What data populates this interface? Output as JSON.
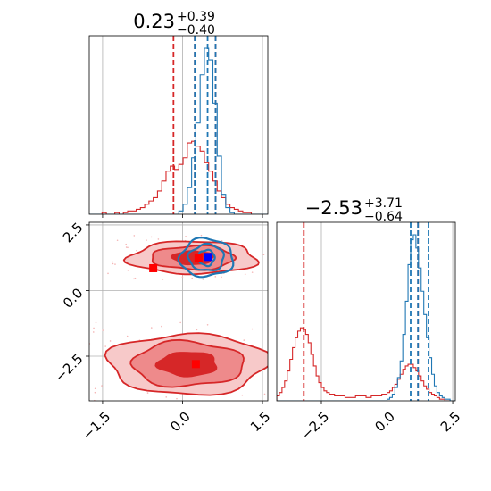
{
  "chart_data": [
    {
      "type": "histogram",
      "panel": "top-left",
      "title": {
        "main": "0.23",
        "sup": "+0.39",
        "sub": "−0.40"
      },
      "xlim": [
        -1.75,
        1.6
      ],
      "x_ticks": [
        -1.5,
        0.0,
        1.5
      ],
      "grid": true,
      "red_lines": [
        -0.17,
        0.23,
        0.62
      ],
      "blue_lines": [
        0.23,
        0.47,
        0.62
      ],
      "series": [
        {
          "color": "#d62728",
          "x_start": -1.75,
          "bin_width": 0.08,
          "values": [
            0.0,
            0.0,
            0.0,
            0.01,
            0.0,
            0.0,
            0.01,
            0.0,
            0.01,
            0.02,
            0.02,
            0.03,
            0.04,
            0.06,
            0.08,
            0.1,
            0.14,
            0.2,
            0.26,
            0.29,
            0.27,
            0.3,
            0.34,
            0.43,
            0.44,
            0.41,
            0.38,
            0.31,
            0.26,
            0.2,
            0.14,
            0.1,
            0.06,
            0.04,
            0.03,
            0.02,
            0.01,
            0.01,
            0.0,
            0.0,
            0.0,
            0.0
          ]
        },
        {
          "color": "#1f77b4",
          "x_start": -1.75,
          "bin_width": 0.08,
          "values": [
            0,
            0,
            0,
            0,
            0,
            0,
            0,
            0,
            0,
            0,
            0,
            0,
            0,
            0,
            0,
            0,
            0,
            0,
            0,
            0,
            0,
            0.02,
            0.06,
            0.16,
            0.34,
            0.55,
            0.84,
            1.0,
            0.93,
            0.67,
            0.35,
            0.12,
            0.04,
            0.01,
            0,
            0,
            0,
            0,
            0,
            0,
            0,
            0
          ]
        }
      ]
    },
    {
      "type": "contour",
      "panel": "bottom-left",
      "xlim": [
        -1.75,
        1.6
      ],
      "ylim": [
        -4.2,
        2.6
      ],
      "x_ticks": [
        -1.5,
        0.0,
        1.5
      ],
      "y_ticks": [
        2.5,
        0.0,
        -2.5
      ],
      "grid": true,
      "markers": [
        {
          "color": "#ff0000",
          "x": 0.3,
          "y": 1.25
        },
        {
          "color": "#ff0000",
          "x": -0.55,
          "y": 0.85
        },
        {
          "color": "#ff0000",
          "x": 0.25,
          "y": -2.8
        },
        {
          "color": "#0000ff",
          "x": 0.48,
          "y": 1.28
        }
      ],
      "red_modes": [
        {
          "x": 0.2,
          "y": 1.25,
          "levels": [
            [
              0.38,
              0.25
            ],
            [
              0.78,
              0.45
            ],
            [
              1.2,
              0.62
            ]
          ]
        },
        {
          "x": 0.1,
          "y": -2.8,
          "levels": [
            [
              0.55,
              0.45
            ],
            [
              1.05,
              0.85
            ],
            [
              1.5,
              1.15
            ]
          ]
        }
      ],
      "blue_mode": {
        "x": 0.45,
        "y": 1.25,
        "levels": [
          [
            0.15,
            0.3
          ],
          [
            0.33,
            0.5
          ],
          [
            0.5,
            0.72
          ]
        ]
      }
    },
    {
      "type": "histogram",
      "panel": "bottom-right",
      "title": {
        "main": "−2.53",
        "sup": "+3.71",
        "sub": "−0.64"
      },
      "xlim": [
        -4.2,
        2.6
      ],
      "x_ticks": [
        -2.5,
        0.0,
        2.5
      ],
      "grid": true,
      "red_lines": [
        -3.17,
        1.18
      ],
      "blue_lines": [
        0.9,
        1.18,
        1.58
      ],
      "series": [
        {
          "color": "#d62728",
          "x_start": -4.2,
          "bin_width": 0.1,
          "values": [
            0.03,
            0.05,
            0.08,
            0.12,
            0.18,
            0.25,
            0.32,
            0.38,
            0.42,
            0.44,
            0.43,
            0.4,
            0.35,
            0.28,
            0.21,
            0.15,
            0.11,
            0.08,
            0.06,
            0.05,
            0.04,
            0.04,
            0.03,
            0.03,
            0.03,
            0.03,
            0.02,
            0.02,
            0.02,
            0.02,
            0.03,
            0.03,
            0.03,
            0.03,
            0.02,
            0.02,
            0.03,
            0.03,
            0.03,
            0.03,
            0.04,
            0.04,
            0.05,
            0.06,
            0.08,
            0.1,
            0.13,
            0.16,
            0.19,
            0.21,
            0.22,
            0.22,
            0.2,
            0.18,
            0.15,
            0.12,
            0.09,
            0.07,
            0.05,
            0.04,
            0.03,
            0.02,
            0.01,
            0.01,
            0.0,
            0.0,
            0.0,
            0.0
          ]
        },
        {
          "color": "#1f77b4",
          "x_start": -4.2,
          "bin_width": 0.1,
          "values": [
            0,
            0,
            0,
            0,
            0,
            0,
            0,
            0,
            0,
            0,
            0,
            0,
            0,
            0,
            0,
            0,
            0,
            0,
            0,
            0,
            0,
            0,
            0,
            0,
            0,
            0,
            0,
            0,
            0,
            0,
            0,
            0,
            0,
            0,
            0,
            0,
            0,
            0,
            0,
            0,
            0,
            0,
            0.01,
            0.02,
            0.04,
            0.08,
            0.14,
            0.24,
            0.4,
            0.6,
            0.82,
            0.97,
            1.0,
            0.92,
            0.8,
            0.66,
            0.52,
            0.38,
            0.26,
            0.16,
            0.09,
            0.05,
            0.03,
            0.02,
            0.01,
            0.01,
            0,
            0
          ]
        }
      ]
    }
  ]
}
